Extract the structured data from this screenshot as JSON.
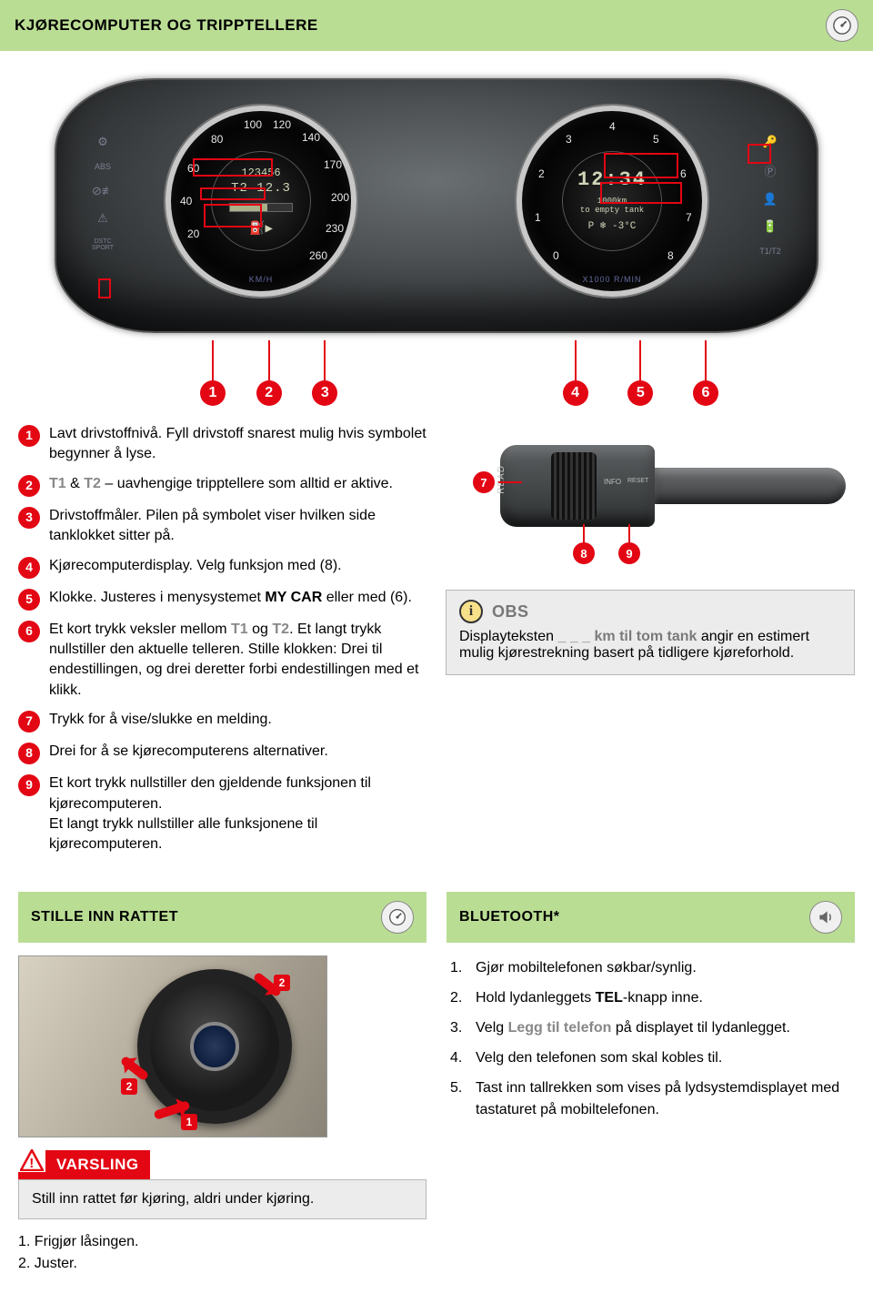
{
  "colors": {
    "accent_red": "#e30613",
    "header_green": "#badd94",
    "note_bg": "#ececec",
    "grey_text": "#888888"
  },
  "header_main": {
    "title": "KJØRECOMPUTER OG TRIPPTELLERE"
  },
  "dashboard": {
    "left_gauge": {
      "unit_label": "KM/H",
      "odometer": "123456",
      "trip_label": "T2 12.3",
      "fuel_icon": "⛽▶",
      "ticks": [
        "20",
        "40",
        "60",
        "80",
        "100",
        "120",
        "140",
        "170",
        "200",
        "230",
        "260"
      ]
    },
    "right_gauge": {
      "unit_label": "X1000 R/MIN",
      "clock": "12:34",
      "range_line1": "1000km",
      "range_line2": "to empty tank",
      "gear_temp": "P ❄ -3°C",
      "ticks": [
        "0",
        "1",
        "2",
        "3",
        "4",
        "5",
        "6",
        "7",
        "8"
      ]
    },
    "markers": [
      "1",
      "2",
      "3",
      "4",
      "5",
      "6"
    ],
    "side_icons_left": [
      "⚙",
      "ABS",
      "⊘≢",
      "⚠",
      "DSTC SPORT"
    ],
    "side_icons_right": [
      "🔑",
      "Ⓟ",
      "👤",
      "🔋",
      "T1/T2"
    ]
  },
  "stalk": {
    "read_label": "READ",
    "info_label": "INFO",
    "reset_label": "RESET",
    "markers": {
      "m7": "7",
      "m8": "8",
      "m9": "9"
    }
  },
  "legend": {
    "items": [
      {
        "n": "1",
        "text": "Lavt drivstoffnivå. Fyll drivstoff snarest mulig hvis symbolet begynner å lyse."
      },
      {
        "n": "2",
        "html": "<span class='grey-bold'>T1</span> & <span class='grey-bold'>T2</span> – uavhengige tripptellere som alltid er aktive."
      },
      {
        "n": "3",
        "text": "Drivstoffmåler. Pilen på symbolet viser hvilken side tanklokket sitter på."
      },
      {
        "n": "4",
        "text": "Kjørecomputerdisplay. Velg funksjon med (8)."
      },
      {
        "n": "5",
        "html": "Klokke. Justeres i menysystemet <span class='body-bold'>MY CAR</span> eller med (6)."
      },
      {
        "n": "6",
        "html": "Et kort trykk veksler mellom <span class='grey-bold'>T1</span> og <span class='grey-bold'>T2</span>. Et langt trykk nullstiller den aktuelle telleren. Stille klokken: Drei til endestillingen, og drei deretter forbi endestillingen med et klikk."
      },
      {
        "n": "7",
        "text": "Trykk for å vise/slukke en melding."
      },
      {
        "n": "8",
        "text": "Drei for å se kjørecomputerens alternativer."
      },
      {
        "n": "9",
        "text": "Et kort trykk nullstiller den gjeldende funksjonen til kjørecomputeren.\nEt langt trykk nullstiller alle funksjonene til kjørecomputeren."
      }
    ]
  },
  "obs_box": {
    "title": "OBS",
    "body_pre": "Displayteksten ",
    "body_hl": "_ _ _ km til tom tank",
    "body_post": " angir en estimert mulig kjørestrekning basert på tidligere kjøreforhold."
  },
  "steering_section": {
    "title": "STILLE INN RATTET",
    "arrow_labels": {
      "a1": "1",
      "a2": "2"
    },
    "warning_title": "VARSLING",
    "warning_body": "Still inn rattet før kjøring, aldri under kjøring.",
    "steps": [
      "1. Frigjør låsingen.",
      "2. Juster."
    ]
  },
  "bluetooth_section": {
    "title": "BLUETOOTH*",
    "steps": [
      {
        "n": "1.",
        "text": "Gjør mobiltelefonen søkbar/synlig."
      },
      {
        "n": "2.",
        "html": "Hold lydanleggets <span class='body-bold'>TEL</span>-knapp inne."
      },
      {
        "n": "3.",
        "html": "Velg <span class='grey-bold'>Legg til telefon</span> på displayet til lydanlegget."
      },
      {
        "n": "4.",
        "text": "Velg den telefonen som skal kobles til."
      },
      {
        "n": "5.",
        "text": "Tast inn tallrekken som vises på lydsystemdisplayet med tastaturet på mobiltelefonen."
      }
    ]
  }
}
